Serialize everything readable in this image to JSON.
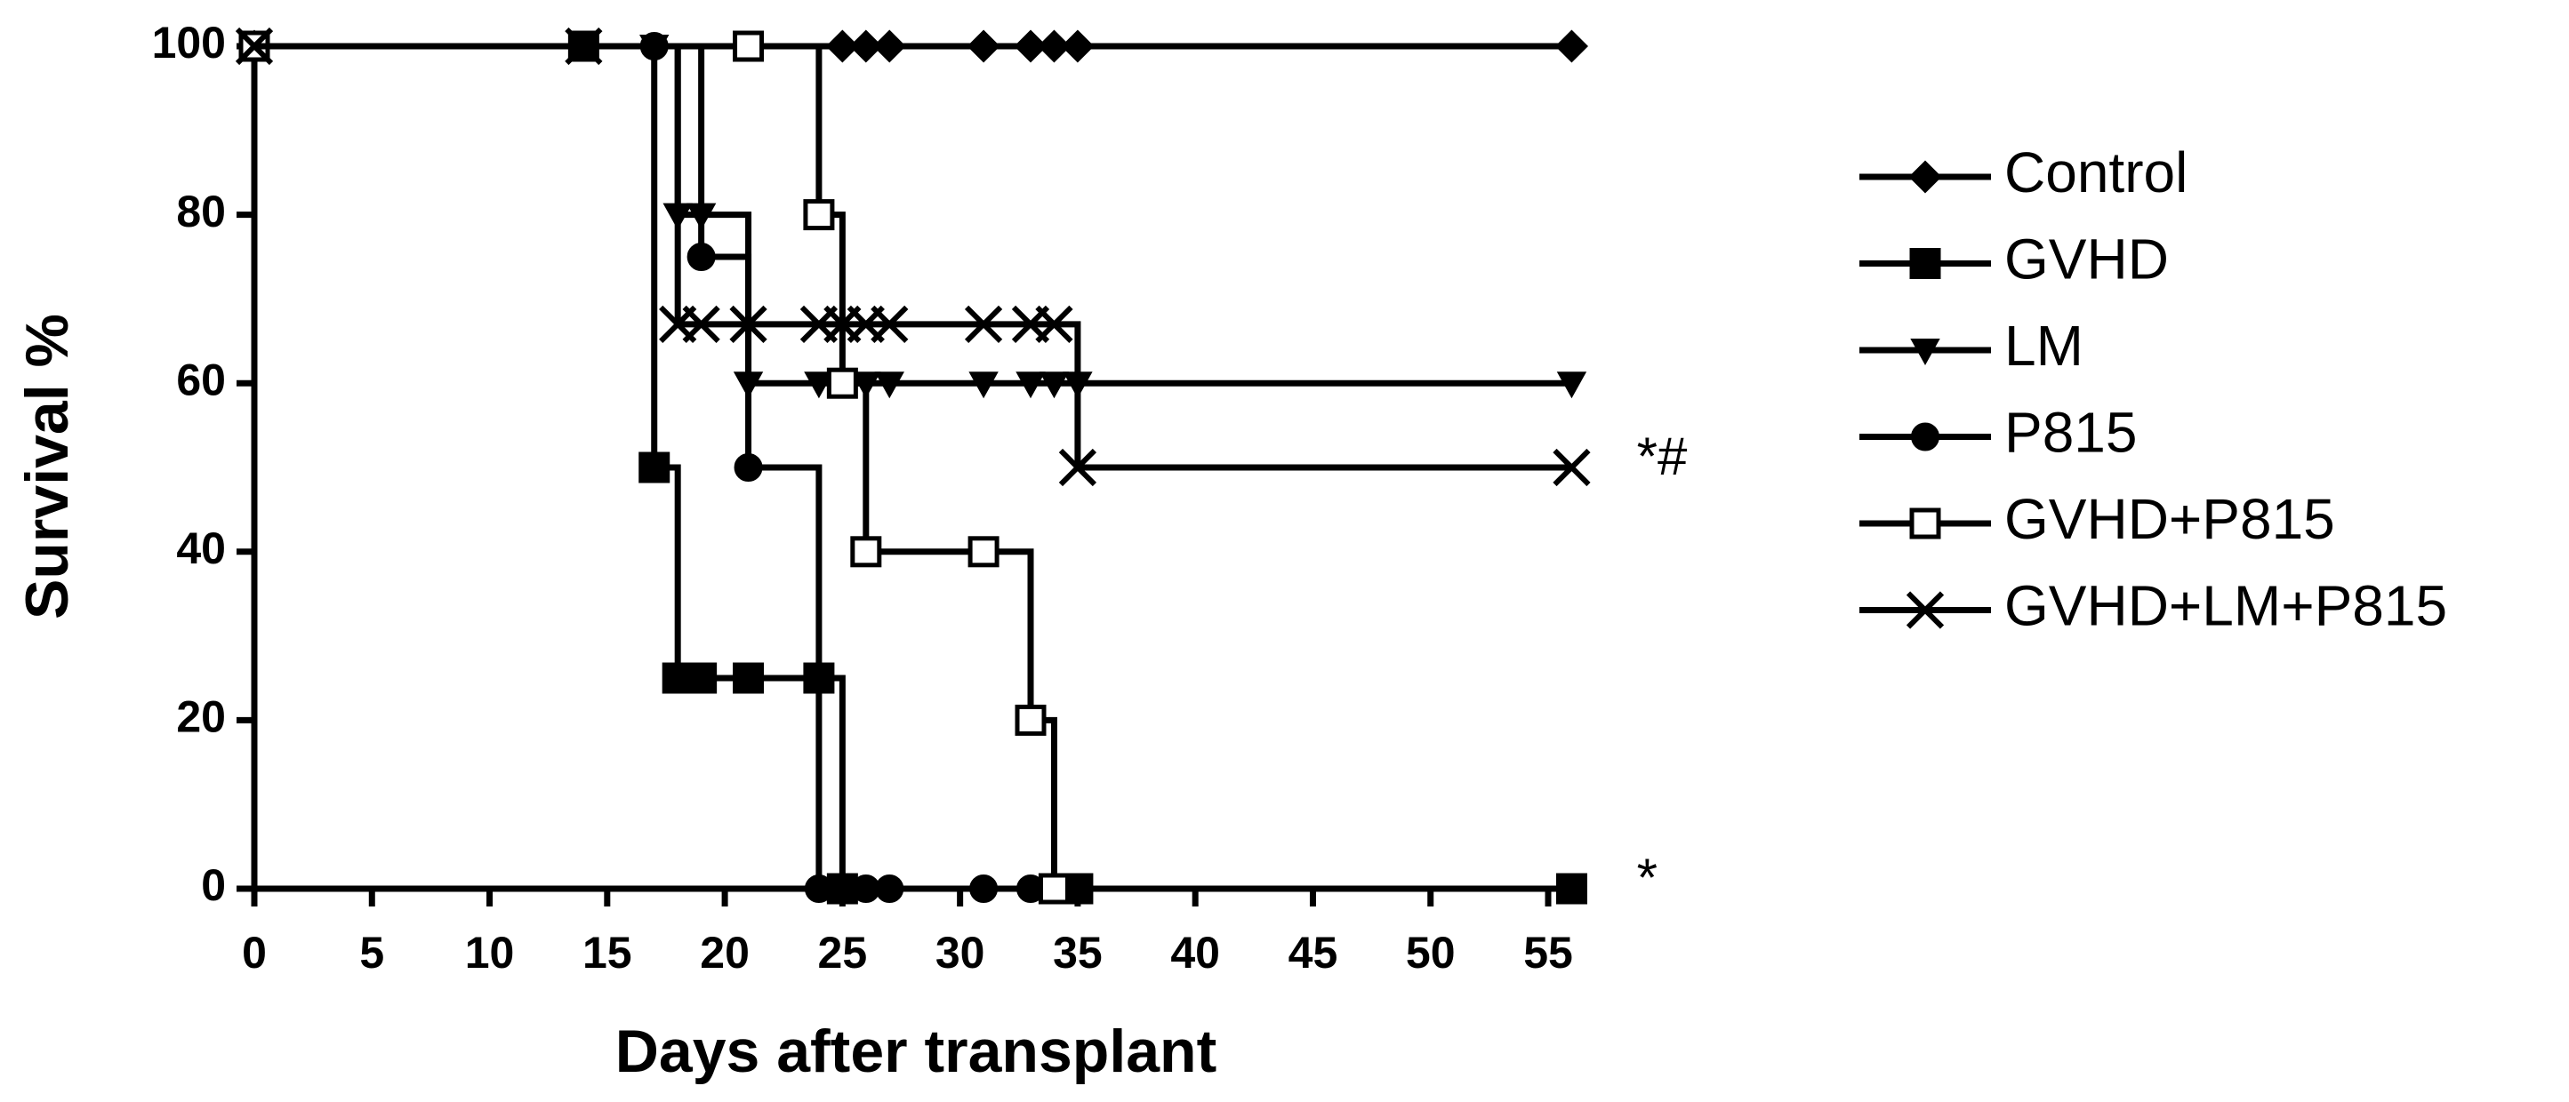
{
  "chart_data": {
    "type": "step",
    "x_label": "Days after transplant",
    "y_label": "Survival %",
    "xlim": [
      0,
      56.5
    ],
    "ylim": [
      0,
      100
    ],
    "xticks": [
      0,
      5,
      10,
      15,
      20,
      25,
      30,
      35,
      40,
      45,
      50,
      55
    ],
    "yticks": [
      0,
      20,
      40,
      60,
      80,
      100
    ],
    "color": "#000000",
    "series": [
      {
        "name": "Control",
        "marker": "diamond",
        "x": [
          0,
          25,
          26,
          27,
          31,
          33,
          34,
          35,
          56
        ],
        "values": [
          100,
          100,
          100,
          100,
          100,
          100,
          100,
          100,
          100
        ]
      },
      {
        "name": "GVHD",
        "marker": "square",
        "x": [
          0,
          14,
          17,
          18,
          19,
          21,
          24,
          25,
          34,
          35,
          56
        ],
        "values": [
          100,
          100,
          50,
          25,
          25,
          25,
          25,
          0,
          0,
          0,
          0
        ]
      },
      {
        "name": "LM",
        "marker": "triangle-down",
        "x": [
          0,
          17,
          18,
          19,
          21,
          24,
          25,
          26,
          27,
          31,
          33,
          34,
          35,
          56
        ],
        "values": [
          100,
          100,
          80,
          80,
          60,
          60,
          60,
          60,
          60,
          60,
          60,
          60,
          60,
          60
        ]
      },
      {
        "name": "P815",
        "marker": "circle",
        "x": [
          0,
          17,
          19,
          21,
          24,
          25,
          26,
          27,
          31,
          33
        ],
        "values": [
          100,
          100,
          75,
          50,
          0,
          0,
          0,
          0,
          0,
          0
        ]
      },
      {
        "name": "GVHD+P815",
        "marker": "open-square",
        "x": [
          0,
          21,
          24,
          25,
          26,
          31,
          33,
          34
        ],
        "values": [
          100,
          100,
          80,
          60,
          40,
          40,
          20,
          0
        ]
      },
      {
        "name": "GVHD+LM+P815",
        "marker": "cross",
        "x": [
          0,
          14,
          18,
          19,
          21,
          24,
          25,
          26,
          27,
          31,
          33,
          34,
          35,
          56
        ],
        "values": [
          100,
          100,
          67,
          67,
          67,
          67,
          67,
          67,
          67,
          67,
          67,
          67,
          50,
          50
        ]
      }
    ],
    "annotations": [
      {
        "text": "*#",
        "y": 50
      },
      {
        "text": "*",
        "y": 0
      }
    ]
  }
}
